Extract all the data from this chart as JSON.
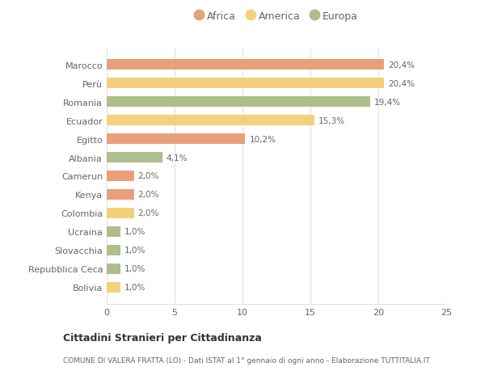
{
  "categories": [
    "Marocco",
    "Perù",
    "Romania",
    "Ecuador",
    "Egitto",
    "Albania",
    "Camerun",
    "Kenya",
    "Colombia",
    "Ucraina",
    "Slovacchia",
    "Repubblica Ceca",
    "Bolivia"
  ],
  "values": [
    20.4,
    20.4,
    19.4,
    15.3,
    10.2,
    4.1,
    2.0,
    2.0,
    2.0,
    1.0,
    1.0,
    1.0,
    1.0
  ],
  "labels": [
    "20,4%",
    "20,4%",
    "19,4%",
    "15,3%",
    "10,2%",
    "4,1%",
    "2,0%",
    "2,0%",
    "2,0%",
    "1,0%",
    "1,0%",
    "1,0%",
    "1,0%"
  ],
  "continents": [
    "Africa",
    "America",
    "Europa",
    "America",
    "Africa",
    "Europa",
    "Africa",
    "Africa",
    "America",
    "Europa",
    "Europa",
    "Europa",
    "America"
  ],
  "colors": {
    "Africa": "#E8A07A",
    "America": "#F5D07A",
    "Europa": "#AEBE8C"
  },
  "legend_labels": [
    "Africa",
    "America",
    "Europa"
  ],
  "xlim": [
    0,
    25
  ],
  "xticks": [
    0,
    5,
    10,
    15,
    20,
    25
  ],
  "title": "Cittadini Stranieri per Cittadinanza",
  "subtitle": "COMUNE DI VALERA FRATTA (LO) - Dati ISTAT al 1° gennaio di ogni anno - Elaborazione TUTTITALIA.IT",
  "background_color": "#ffffff",
  "bar_height": 0.55,
  "grid_color": "#e0e0e0"
}
